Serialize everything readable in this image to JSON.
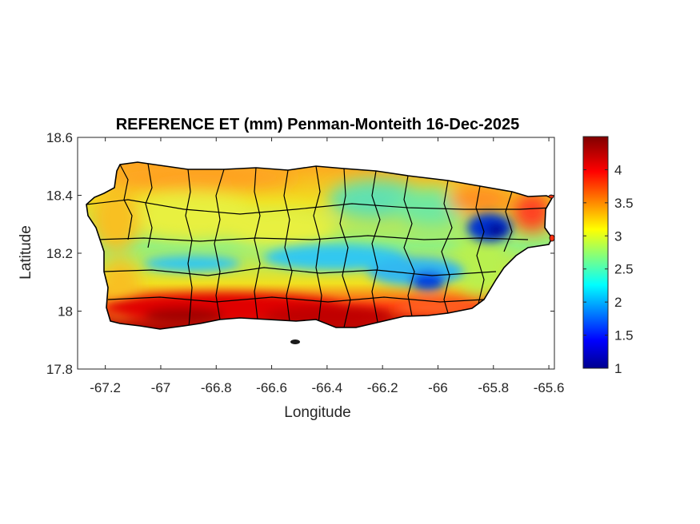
{
  "title": "REFERENCE ET (mm) Penman-Monteith 16-Dec-2025",
  "xlabel": "Longitude",
  "ylabel": "Latitude",
  "x_ticks": [
    "-67.2",
    "-67",
    "-66.8",
    "-66.6",
    "-66.4",
    "-66.2",
    "-66",
    "-65.8",
    "-65.6"
  ],
  "y_ticks": [
    "18.6",
    "18.4",
    "18.2",
    "18",
    "17.8"
  ],
  "colorbar": {
    "ticks": [
      "4",
      "3.5",
      "3",
      "2.5",
      "2",
      "1.5",
      "1"
    ],
    "range": [
      1,
      4.5
    ],
    "colormap": "jet"
  },
  "map_data": {
    "region": "Puerto Rico",
    "variable": "Reference evapotranspiration",
    "units": "mm",
    "lon_range": [
      -67.3,
      -65.58
    ],
    "lat_range": [
      17.8,
      18.6
    ],
    "low_zones": [
      "central mountain ridge",
      "El Yunque (northeast)"
    ],
    "high_zones": [
      "south coast",
      "northeast coast"
    ]
  },
  "colors": {
    "low": "#00008f",
    "mid": "#f0f000",
    "high": "#800000",
    "boundary": "#000000",
    "axes": "#262626"
  }
}
